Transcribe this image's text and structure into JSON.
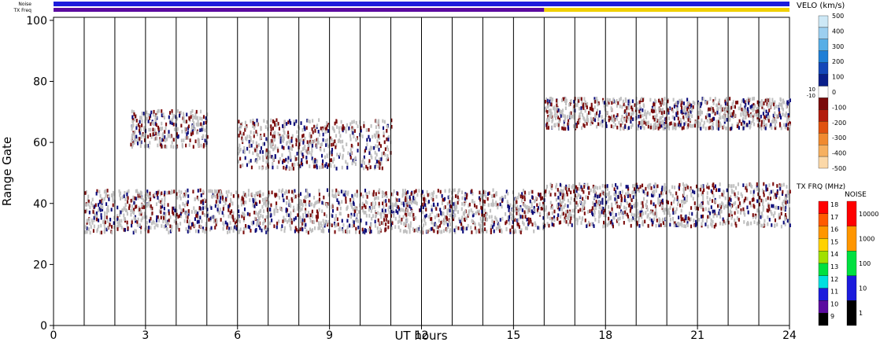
{
  "chart_data": {
    "type": "heatmap",
    "title": "",
    "xlabel": "UT hours",
    "ylabel": "Range Gate",
    "xlim": [
      0,
      24
    ],
    "ylim": [
      0,
      101
    ],
    "x_ticks": [
      0,
      3,
      6,
      9,
      12,
      15,
      18,
      21,
      24
    ],
    "y_ticks": [
      0,
      20,
      40,
      60,
      80,
      100
    ],
    "grid": "vertical lines every 1 UT hour",
    "colors": {
      "ground_scatter": "#c0c0c0",
      "negative_velocity": "#7a0a0a",
      "positive_velocity": "#0a0a7a"
    },
    "status_bars": {
      "noise_label": "Noise",
      "txfreq_label": "TX Freq",
      "noise_color": "#1c1cdc",
      "txfreq_segments": [
        {
          "start": 0,
          "end": 16,
          "color": "#5a0aa0"
        },
        {
          "start": 16,
          "end": 24,
          "color": "#f0d000"
        }
      ]
    },
    "scatter_regions": [
      {
        "kind": "ground",
        "x0": 1.0,
        "x1": 16.0,
        "gate_center": 38,
        "spread": 7
      },
      {
        "kind": "ground",
        "x0": 16.0,
        "x1": 24.0,
        "gate_center": 40,
        "spread": 7
      },
      {
        "kind": "ground",
        "x0": 2.5,
        "x1": 5.0,
        "gate_center": 65,
        "spread": 6
      },
      {
        "kind": "ground",
        "x0": 6.0,
        "x1": 11.0,
        "gate_center": 60,
        "spread": 8
      },
      {
        "kind": "ground",
        "x0": 16.0,
        "x1": 24.0,
        "gate_center": 70,
        "spread": 5
      }
    ],
    "velocity_scale": {
      "label": "VELO (km/s)",
      "ticks": [
        500,
        400,
        300,
        200,
        100,
        0,
        -100,
        -200,
        -300,
        -400,
        -500
      ],
      "small_labels": [
        "10",
        "-10"
      ],
      "colors": [
        "#cde8f6",
        "#9ccff0",
        "#57aee6",
        "#1f7fd6",
        "#1447b8",
        "#0a1f8a",
        "#ffffff",
        "#7a0a0a",
        "#b31c0c",
        "#e0520f",
        "#f08a30",
        "#f6b060",
        "#fbd8a8"
      ]
    },
    "txfreq_scale": {
      "label": "TX FRQ (MHz)",
      "ticks": [
        18,
        17,
        16,
        15,
        14,
        13,
        12,
        11,
        10,
        9
      ],
      "colors": [
        "#ff0000",
        "#ff5a00",
        "#ff9600",
        "#ffd200",
        "#a0e000",
        "#00e040",
        "#00e0e0",
        "#1c1cdc",
        "#5a0aa0",
        "#000000"
      ]
    },
    "noise_scale": {
      "label": "NOISE",
      "ticks": [
        "10000",
        "1000",
        "100",
        "10",
        "1"
      ],
      "colors": [
        "#ff0000",
        "#ff9600",
        "#00e040",
        "#1c1cdc",
        "#000000"
      ]
    }
  }
}
